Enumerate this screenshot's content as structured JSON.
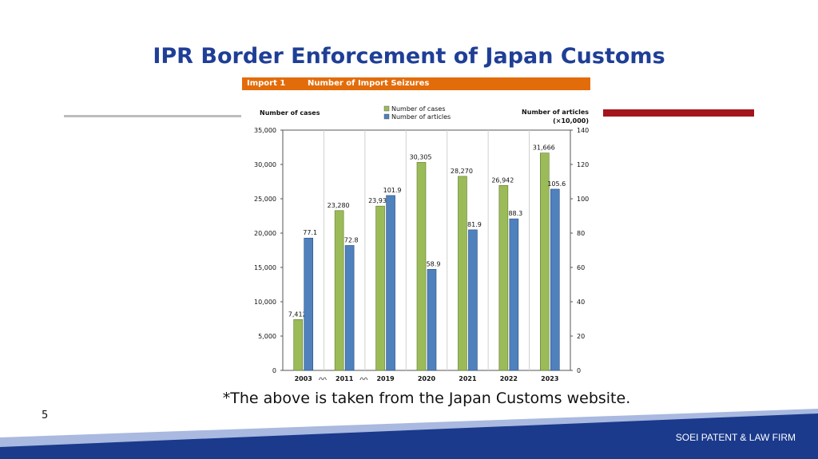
{
  "slide": {
    "title": "IPR Border Enforcement of Japan Customs",
    "source_note": "*The above is taken from the Japan Customs website.",
    "page_number": "5",
    "firm": "SOEI PATENT & LAW FIRM"
  },
  "colors": {
    "title": "#1f3f96",
    "header_bar": "#e36c0a",
    "accent_red": "#a3141c",
    "footer_dark": "#1b3a8c",
    "footer_light": "#a9b9e0",
    "cases": "#9bbb59",
    "articles": "#4f81bd"
  },
  "chart_data": {
    "type": "bar",
    "header_left": "Import 1",
    "header_right": "Number of Import Seizures",
    "categories": [
      "2003",
      "2011",
      "2019",
      "2020",
      "2021",
      "2022",
      "2023"
    ],
    "series": [
      {
        "name": "Number of cases",
        "axis": "left",
        "values": [
          7412,
          23280,
          23934,
          30305,
          28270,
          26942,
          31666
        ],
        "labels": [
          "7,412",
          "23,280",
          "23,934",
          "30,305",
          "28,270",
          "26,942",
          "31,666"
        ]
      },
      {
        "name": "Number of articles",
        "axis": "right",
        "values": [
          77.1,
          72.8,
          101.9,
          58.9,
          81.9,
          88.3,
          105.6
        ],
        "labels": [
          "77.1",
          "72.8",
          "101.9",
          "58.9",
          "81.9",
          "88.3",
          "105.6"
        ]
      }
    ],
    "ylabel_left": "Number of cases",
    "ylabel_right": "Number of articles",
    "ylabel_right_unit": "(×10,000)",
    "ylim_left": [
      0,
      35000
    ],
    "ylim_right": [
      0,
      140
    ],
    "yticks_left": [
      "0",
      "5,000",
      "10,000",
      "15,000",
      "20,000",
      "25,000",
      "30,000",
      "35,000"
    ],
    "yticks_right": [
      "0",
      "20",
      "40",
      "60",
      "80",
      "100",
      "120",
      "140"
    ],
    "axis_breaks_after": [
      "2003",
      "2011"
    ],
    "grid": "vertical category separators",
    "legend_position": "top-center"
  }
}
